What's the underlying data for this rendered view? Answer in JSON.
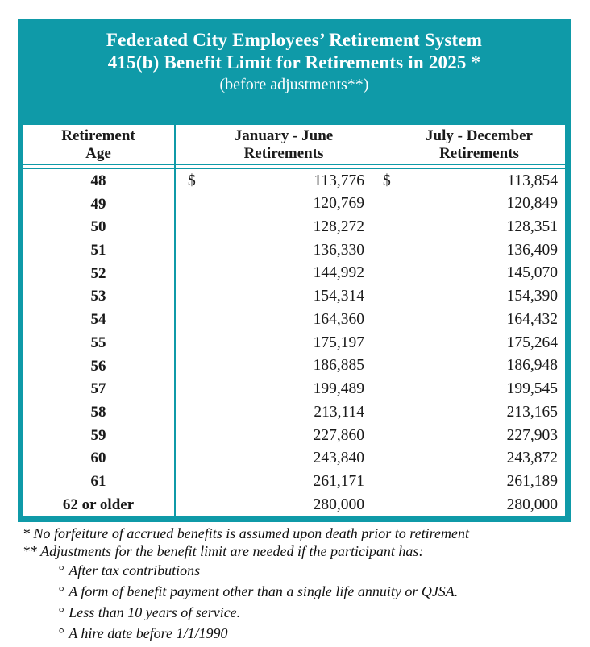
{
  "title": {
    "line1": "Federated City Employees’ Retirement System",
    "line2": "415(b) Benefit Limit for Retirements in 2025 *",
    "line3": "(before adjustments**)"
  },
  "table": {
    "currency_symbol": "$",
    "columns": {
      "age": {
        "line1": "Retirement",
        "line2": "Age"
      },
      "jan_june": {
        "line1": "January - June",
        "line2": "Retirements"
      },
      "july_december": {
        "line1": "July - December",
        "line2": "Retirements"
      }
    },
    "rows": [
      {
        "age": "48",
        "jan_june": "113,776",
        "july_december": "113,854",
        "show_currency": true
      },
      {
        "age": "49",
        "jan_june": "120,769",
        "july_december": "120,849",
        "show_currency": false
      },
      {
        "age": "50",
        "jan_june": "128,272",
        "july_december": "128,351",
        "show_currency": false
      },
      {
        "age": "51",
        "jan_june": "136,330",
        "july_december": "136,409",
        "show_currency": false
      },
      {
        "age": "52",
        "jan_june": "144,992",
        "july_december": "145,070",
        "show_currency": false
      },
      {
        "age": "53",
        "jan_june": "154,314",
        "july_december": "154,390",
        "show_currency": false
      },
      {
        "age": "54",
        "jan_june": "164,360",
        "july_december": "164,432",
        "show_currency": false
      },
      {
        "age": "55",
        "jan_june": "175,197",
        "july_december": "175,264",
        "show_currency": false
      },
      {
        "age": "56",
        "jan_june": "186,885",
        "july_december": "186,948",
        "show_currency": false
      },
      {
        "age": "57",
        "jan_june": "199,489",
        "july_december": "199,545",
        "show_currency": false
      },
      {
        "age": "58",
        "jan_june": "213,114",
        "july_december": "213,165",
        "show_currency": false
      },
      {
        "age": "59",
        "jan_june": "227,860",
        "july_december": "227,903",
        "show_currency": false
      },
      {
        "age": "60",
        "jan_june": "243,840",
        "july_december": "243,872",
        "show_currency": false
      },
      {
        "age": "61",
        "jan_june": "261,171",
        "july_december": "261,189",
        "show_currency": false
      },
      {
        "age": "62 or older",
        "jan_june": "280,000",
        "july_december": "280,000",
        "show_currency": false
      }
    ]
  },
  "footnotes": {
    "bullet_symbol": "°",
    "star": "* No forfeiture of accrued benefits is assumed upon death prior to retirement",
    "double_star": "** Adjustments for the benefit limit are needed if the participant has:",
    "bullets": [
      "After tax contributions",
      "A form of benefit payment other than a single life annuity or QJSA.",
      "Less than 10 years of service.",
      "A hire date before 1/1/1990"
    ]
  },
  "colors": {
    "teal": "#0f9aa8",
    "text": "#1a1a1a",
    "title_text": "#ffffff",
    "background": "#ffffff"
  }
}
